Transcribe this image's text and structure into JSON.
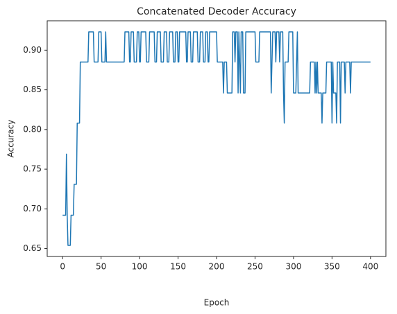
{
  "chart_data": {
    "type": "line",
    "title": "Concatenated Decoder Accuracy",
    "xlabel": "Epoch",
    "ylabel": "Accuracy",
    "x": [
      0,
      4,
      5,
      6,
      7,
      10,
      11,
      14,
      15,
      18,
      19,
      22,
      23,
      33,
      34,
      40,
      41,
      46,
      47,
      50,
      51,
      55,
      56,
      57,
      80,
      81,
      86,
      87,
      88,
      89,
      92,
      93,
      96,
      97,
      99,
      100,
      101,
      102,
      108,
      109,
      112,
      113,
      119,
      120,
      122,
      123,
      127,
      128,
      131,
      132,
      135,
      136,
      138,
      139,
      143,
      144,
      146,
      147,
      149,
      150,
      151,
      152,
      160,
      161,
      162,
      163,
      166,
      167,
      169,
      170,
      175,
      176,
      178,
      179,
      182,
      183,
      185,
      186,
      188,
      189,
      190,
      191,
      200,
      201,
      208,
      209,
      210,
      213,
      214,
      220,
      221,
      223,
      224,
      225,
      227,
      228,
      229,
      230,
      231,
      232,
      234,
      235,
      237,
      238,
      250,
      251,
      255,
      256,
      270,
      271,
      272,
      273,
      276,
      277,
      278,
      281,
      282,
      283,
      286,
      287,
      288,
      289,
      293,
      294,
      299,
      300,
      303,
      304,
      305,
      306,
      321,
      322,
      327,
      328,
      329,
      330,
      331,
      332,
      336,
      337,
      338,
      342,
      343,
      349,
      350,
      351,
      352,
      355,
      356,
      357,
      360,
      361,
      362,
      366,
      367,
      368,
      373,
      374,
      375,
      400
    ],
    "series": [
      {
        "name": "Accuracy",
        "color": "#1f77b4",
        "values": [
          0.692,
          0.692,
          0.769,
          0.692,
          0.654,
          0.654,
          0.692,
          0.692,
          0.731,
          0.731,
          0.808,
          0.808,
          0.885,
          0.885,
          0.923,
          0.923,
          0.885,
          0.885,
          0.923,
          0.923,
          0.885,
          0.885,
          0.923,
          0.885,
          0.885,
          0.923,
          0.923,
          0.885,
          0.885,
          0.923,
          0.923,
          0.885,
          0.885,
          0.923,
          0.923,
          0.885,
          0.885,
          0.923,
          0.923,
          0.885,
          0.885,
          0.923,
          0.923,
          0.885,
          0.885,
          0.923,
          0.923,
          0.885,
          0.885,
          0.923,
          0.923,
          0.885,
          0.885,
          0.923,
          0.923,
          0.885,
          0.885,
          0.923,
          0.923,
          0.885,
          0.885,
          0.923,
          0.923,
          0.885,
          0.885,
          0.923,
          0.923,
          0.885,
          0.885,
          0.923,
          0.923,
          0.885,
          0.885,
          0.923,
          0.923,
          0.885,
          0.885,
          0.923,
          0.923,
          0.885,
          0.885,
          0.923,
          0.923,
          0.885,
          0.885,
          0.846,
          0.885,
          0.885,
          0.846,
          0.846,
          0.923,
          0.923,
          0.885,
          0.923,
          0.923,
          0.846,
          0.923,
          0.885,
          0.846,
          0.923,
          0.923,
          0.846,
          0.846,
          0.923,
          0.923,
          0.885,
          0.885,
          0.923,
          0.923,
          0.846,
          0.885,
          0.923,
          0.923,
          0.885,
          0.923,
          0.923,
          0.885,
          0.923,
          0.923,
          0.846,
          0.808,
          0.885,
          0.885,
          0.923,
          0.923,
          0.846,
          0.846,
          0.885,
          0.923,
          0.846,
          0.846,
          0.885,
          0.885,
          0.846,
          0.885,
          0.846,
          0.885,
          0.846,
          0.846,
          0.808,
          0.846,
          0.846,
          0.885,
          0.885,
          0.808,
          0.885,
          0.846,
          0.846,
          0.808,
          0.885,
          0.885,
          0.808,
          0.885,
          0.885,
          0.846,
          0.885,
          0.885,
          0.846,
          0.885,
          0.885
        ]
      }
    ],
    "xlim": [
      -20,
      420
    ],
    "xticks": [
      0,
      50,
      100,
      150,
      200,
      250,
      300,
      350,
      400
    ],
    "ylim": [
      0.64,
      0.937
    ],
    "yticks": [
      0.65,
      {
        "value": 0.7,
        "label": "0.70"
      },
      0.75,
      {
        "value": 0.8,
        "label": "0.80"
      },
      0.85,
      {
        "value": 0.9,
        "label": "0.90"
      }
    ],
    "grid": false
  }
}
